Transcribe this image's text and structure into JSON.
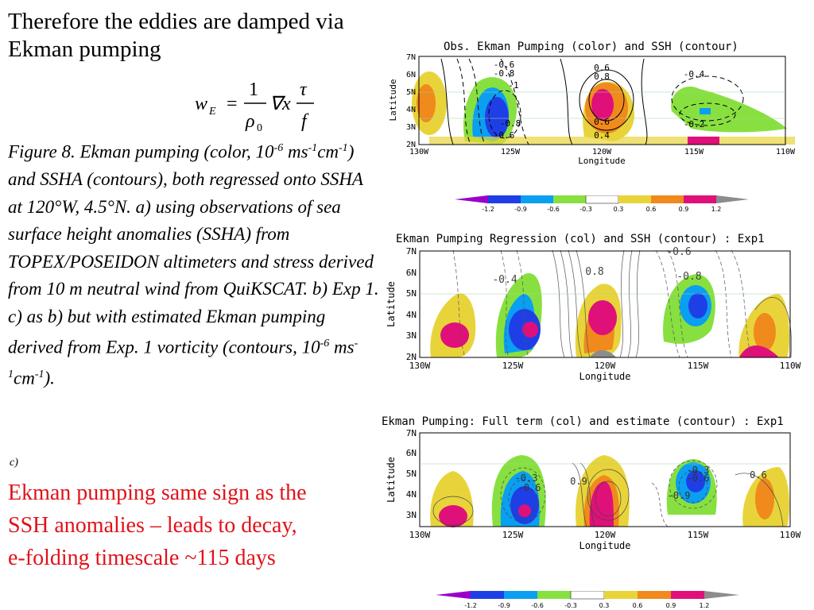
{
  "slide": {
    "title": "Therefore the eddies are damped via Ekman pumping",
    "formula": {
      "lhs": "w",
      "lhs_sub": "E",
      "num1": "1",
      "den1": "ρ",
      "den1_sub": "0",
      "op": "∇x",
      "num2": "τ",
      "den2": "f"
    },
    "caption_parts": [
      "Figure 8. Ekman pumping (color, 10",
      "-6",
      " ms",
      "-1",
      "cm",
      "-1",
      ") and SSHA (contours), both regressed onto SSHA at 120°W, 4.5°N. a) using observations of sea surface height anomalies (SSHA) from TOPEX/POSEIDON altimeters and stress derived from  10 m neutral wind from QuiKSCAT.   b) Exp 1. c) as b) but with estimated Ekman pumping derived from Exp. 1 vorticity (contours, 10",
      "-6",
      " ms",
      "-1",
      "cm",
      "-1",
      ")."
    ],
    "panel_label": "c)",
    "note": "Ekman pumping same sign as the SSH anomalies – leads to decay, e-folding timescale ~115 days"
  },
  "panels": [
    {
      "title": "Obs. Ekman Pumping (color) and SSH (contour)",
      "ylabel": "Latitude",
      "xlabel": "Longitude",
      "yticks": [
        "7N",
        "6N",
        "5N",
        "4N",
        "3N",
        "2N"
      ],
      "xticks": [
        "130W",
        "125W",
        "120W",
        "115W",
        "110W"
      ],
      "contour_labels": [
        "-0.6",
        "-0.8",
        "-1",
        "-0.8",
        "-0.6",
        "0.6",
        "0.8",
        "0.6",
        "0.4",
        "-0.4",
        "-0.2"
      ]
    },
    {
      "title": "Ekman Pumping Regression (col) and SSH (contour) : Exp1",
      "ylabel": "Latitude",
      "xlabel": "Longitude",
      "yticks": [
        "7N",
        "6N",
        "5N",
        "4N",
        "3N",
        "2N"
      ],
      "xticks": [
        "130W",
        "125W",
        "120W",
        "115W",
        "110W"
      ],
      "contour_labels": [
        "-0.4",
        "0.8",
        "-0.8",
        "-0.6"
      ]
    },
    {
      "title": "Ekman Pumping: Full term (col) and estimate (contour) : Exp1",
      "ylabel": "Latitude",
      "xlabel": "Longitude",
      "yticks": [
        "7N",
        "6N",
        "5N",
        "4N",
        "3N"
      ],
      "xticks": [
        "130W",
        "125W",
        "120W",
        "115W",
        "110W"
      ],
      "contour_labels": [
        "-0.3",
        "-0.6",
        "0.9",
        "-0.3",
        "-0.6",
        "-0.9",
        "0.6"
      ]
    }
  ],
  "colorbar": {
    "labels": [
      "-1.2",
      "-0.9",
      "-0.6",
      "-0.3",
      "0.3",
      "0.6",
      "0.9",
      "1.2"
    ],
    "colors": [
      "#9b00c8",
      "#1f3fe6",
      "#0a9ff0",
      "#88e040",
      "#ffffff",
      "#e8d43a",
      "#f08a1c",
      "#e0107a",
      "#8c8c8c"
    ]
  }
}
